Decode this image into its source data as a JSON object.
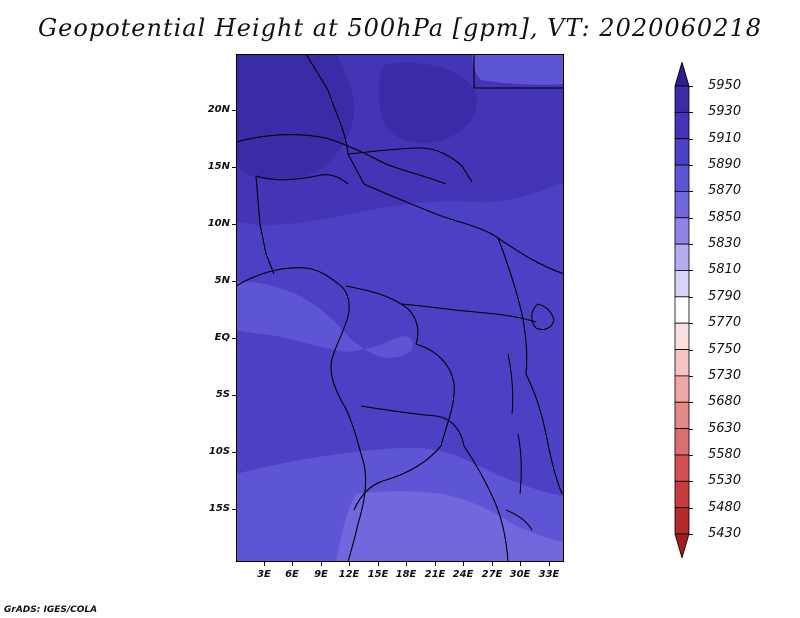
{
  "title": "Geopotential Height at 500hPa [gpm], VT: 2020060218",
  "credit": "GrADS: IGES/COLA",
  "lat_ticks": [
    "20N",
    "15N",
    "10N",
    "5N",
    "EQ",
    "5S",
    "10S",
    "15S"
  ],
  "lon_ticks": [
    "3E",
    "6E",
    "9E",
    "12E",
    "15E",
    "18E",
    "21E",
    "24E",
    "27E",
    "30E",
    "33E"
  ],
  "colorbar": {
    "levels": [
      "5950",
      "5930",
      "5910",
      "5890",
      "5870",
      "5850",
      "5830",
      "5810",
      "5790",
      "5770",
      "5750",
      "5730",
      "5680",
      "5630",
      "5580",
      "5530",
      "5480",
      "5430"
    ],
    "colors": [
      "#2a1e90",
      "#3a2ca6",
      "#4434b6",
      "#4c40c4",
      "#5d55d4",
      "#7168de",
      "#8e84e8",
      "#b3aef0",
      "#d6d4f7",
      "#ffffff",
      "#fbe0e0",
      "#f6c4c4",
      "#eea6a6",
      "#e58a8a",
      "#dd6e6e",
      "#d55050",
      "#c93a3a",
      "#b42a2a",
      "#a01e1e"
    ]
  },
  "map_colors": {
    "level_5930": "#3a2ca6",
    "level_5910": "#4434b6",
    "level_5890": "#4c40c4",
    "level_5870": "#5d55d4",
    "level_5850": "#7168de",
    "coast": "#000000"
  }
}
